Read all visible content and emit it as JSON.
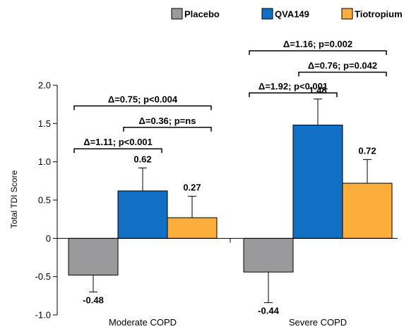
{
  "chart_data": {
    "type": "bar",
    "categories": [
      "Moderate COPD",
      "Severe COPD"
    ],
    "series": [
      {
        "name": "Placebo",
        "color": "#9a9a9c",
        "values": [
          -0.48,
          -0.44
        ],
        "errors": [
          0.22,
          0.4
        ],
        "labels": [
          "-0.48",
          "-0.44"
        ]
      },
      {
        "name": "QVA149",
        "color": "#1170c4",
        "values": [
          0.62,
          1.48
        ],
        "errors": [
          0.3,
          0.34
        ],
        "labels": [
          "0.62",
          "1.48"
        ]
      },
      {
        "name": "Tiotropium",
        "color": "#fbae3c",
        "values": [
          0.27,
          0.72
        ],
        "errors": [
          0.28,
          0.31
        ],
        "labels": [
          "0.27",
          "0.72"
        ]
      }
    ],
    "ylabel": "Total TDI Score",
    "ylim": [
      -1.0,
      2.0
    ],
    "yticks": [
      -1.0,
      -0.5,
      0,
      0.5,
      1.0,
      1.5,
      2.0
    ],
    "ytick_labels": [
      "-1.0",
      "-0.5",
      "0",
      "0.5",
      "1.0",
      "1.5",
      "2.0"
    ],
    "legend_position": "top",
    "grid": false,
    "annotations": [
      {
        "category": 0,
        "from": 0,
        "to": 2,
        "y": 1.73,
        "text": "Δ=0.75; p<0.004"
      },
      {
        "category": 0,
        "from": 1,
        "to": 2,
        "y": 1.45,
        "text": "Δ=0.36; p=ns"
      },
      {
        "category": 0,
        "from": 0,
        "to": 1,
        "y": 1.17,
        "text": "Δ=1.11; p<0.001"
      },
      {
        "category": 1,
        "from": 0,
        "to": 2,
        "y": 2.45,
        "text": "Δ=1.16; p=0.002"
      },
      {
        "category": 1,
        "from": 1,
        "to": 2,
        "y": 2.17,
        "text": "Δ=0.76; p=0.042"
      },
      {
        "category": 1,
        "from": 0,
        "to": 1,
        "y": 1.9,
        "text": "Δ=1.92; p<0.001"
      }
    ]
  }
}
